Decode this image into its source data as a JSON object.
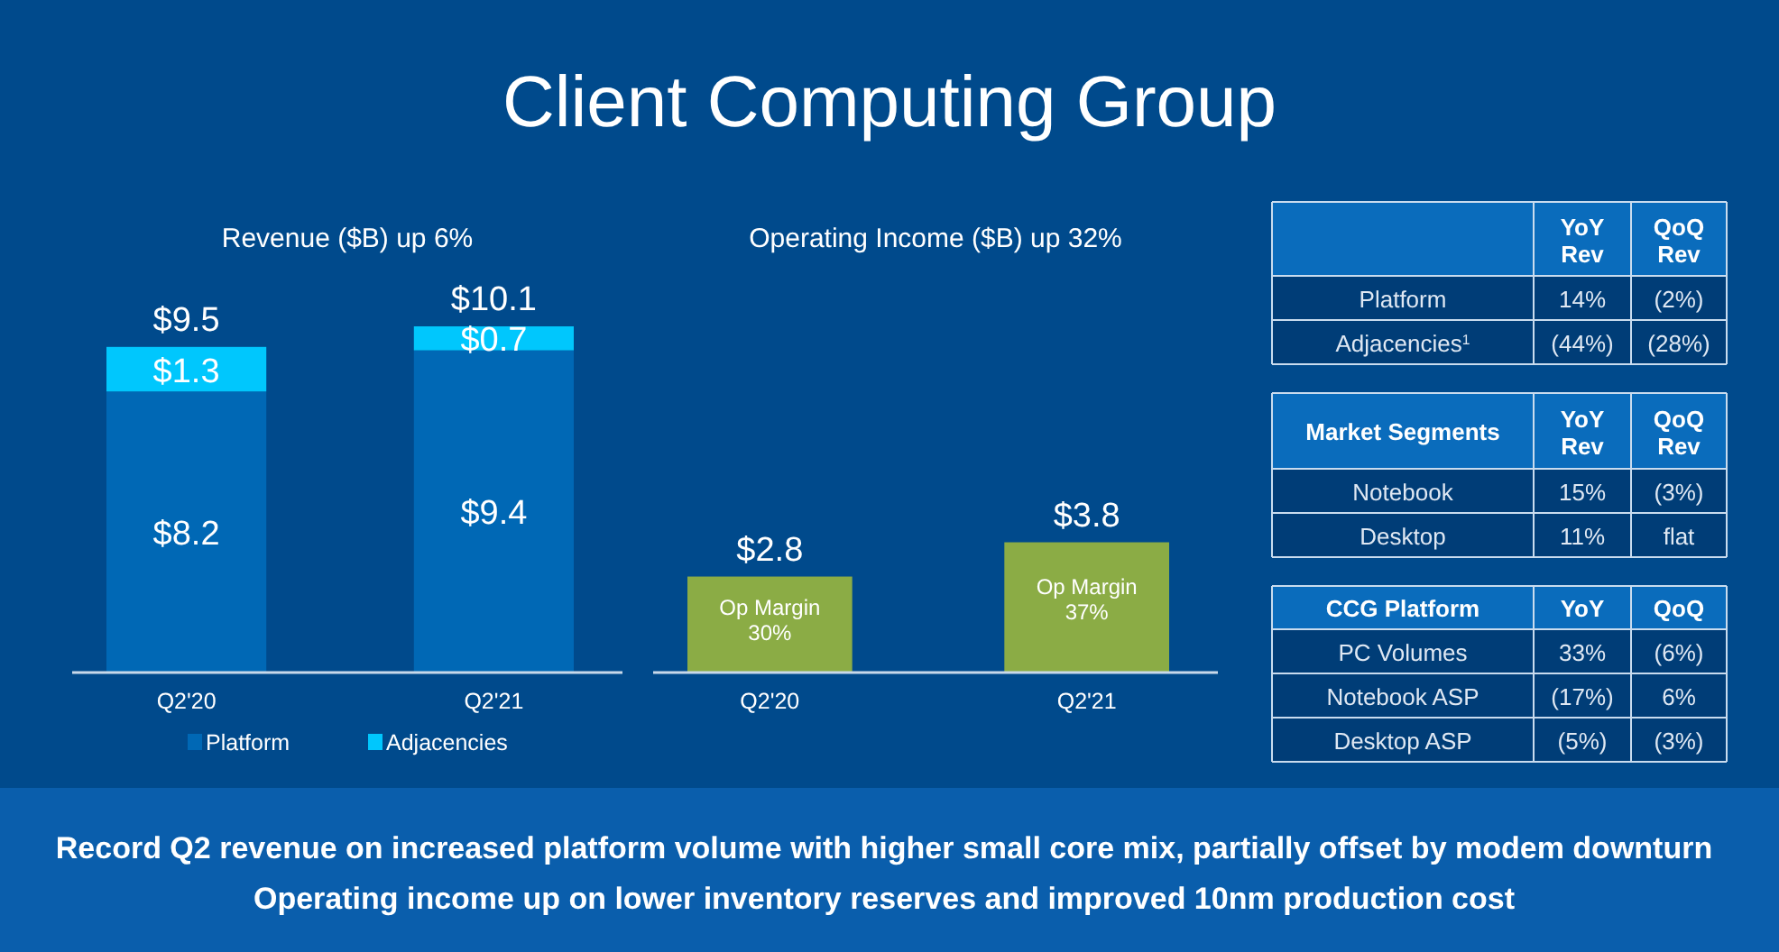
{
  "chart_data": [
    {
      "type": "bar",
      "title": "Client Computing Group",
      "subtitle": "Revenue ($B) up 6%",
      "categories": [
        "Q2'20",
        "Q2'21"
      ],
      "stacked": true,
      "legend": "bottom",
      "totals": [
        "$9.5",
        "$10.1"
      ],
      "series": [
        {
          "name": "Platform",
          "color": "#0068b5",
          "values": [
            8.2,
            9.4
          ],
          "value_labels": [
            "$8.2",
            "$9.4"
          ]
        },
        {
          "name": "Adjacencies",
          "color": "#00c7fd",
          "values": [
            1.3,
            0.7
          ],
          "value_labels": [
            "$1.3",
            "$0.7"
          ]
        }
      ]
    },
    {
      "type": "bar",
      "title": "Operating Income ($B) up 32%",
      "categories": [
        "Q2'20",
        "Q2'21"
      ],
      "values": [
        2.8,
        3.8
      ],
      "color": "#8bac45",
      "value_labels": [
        "$2.8",
        "$3.8"
      ],
      "annotations": [
        "Op Margin 30%",
        "Op Margin 37%"
      ]
    },
    {
      "type": "other",
      "annotations": [
        "YoY Rev",
        "QoQ Rev",
        "Platform",
        "14%",
        "(2%)",
        "Adjacencies$^{1}$",
        "(44%)",
        "(28%)",
        "Market Segments",
        "YoY Rev",
        "QoQ Rev",
        "Notebook",
        "15%",
        "(3%)",
        "Desktop",
        "11%",
        "flat",
        "CCG Platform",
        "YoY",
        "QoQ",
        "PC Volumes",
        "33%",
        "(6%)",
        "Notebook ASP",
        "(17%)",
        "6%",
        "Desktop ASP",
        "(5%)",
        "(3%)",
        "Record Q2 revenue on increased platform volume with higher small core mix, partially offset by modem downturn",
        "Operating income up on lower inventory reserves and improved 10nm production cost"
      ]
    }
  ]
}
